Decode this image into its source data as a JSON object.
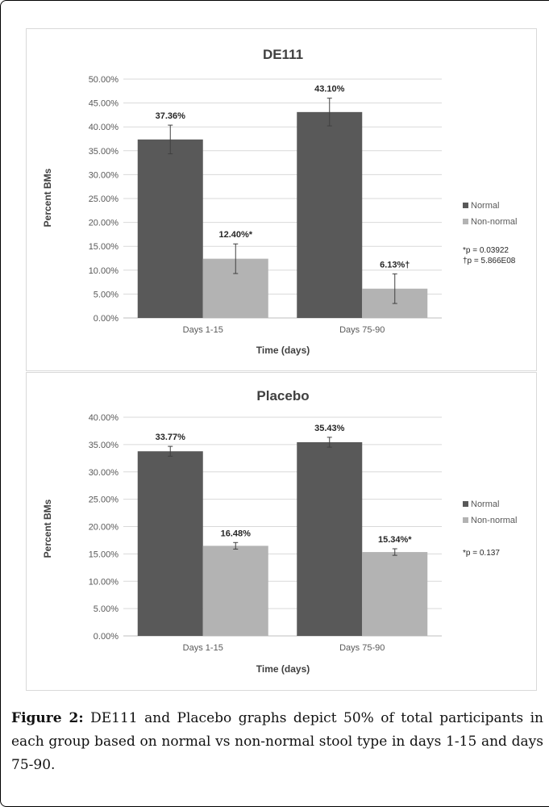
{
  "chart_data": [
    {
      "type": "bar",
      "title": "DE111",
      "xlabel": "Time (days)",
      "ylabel": "Percent BMs",
      "categories": [
        "Days 1-15",
        "Days 75-90"
      ],
      "series": [
        {
          "name": "Normal",
          "color": "#595959",
          "values": [
            37.36,
            43.1
          ],
          "errors": [
            3.0,
            2.9
          ],
          "labels": [
            "37.36%",
            "43.10%"
          ]
        },
        {
          "name": "Non-normal",
          "color": "#b3b3b3",
          "values": [
            12.4,
            6.13
          ],
          "errors": [
            3.1,
            3.1
          ],
          "labels": [
            "12.40%*",
            "6.13%†"
          ]
        }
      ],
      "ylim": [
        0,
        50
      ],
      "ystep": 5,
      "tick_labels": [
        "0.00%",
        "5.00%",
        "10.00%",
        "15.00%",
        "20.00%",
        "25.00%",
        "30.00%",
        "35.00%",
        "40.00%",
        "45.00%",
        "50.00%"
      ],
      "grid": true,
      "legend_position": "right",
      "notes": [
        "*p = 0.03922",
        "†p = 5.866E08"
      ]
    },
    {
      "type": "bar",
      "title": "Placebo",
      "xlabel": "Time (days)",
      "ylabel": "Percent BMs",
      "categories": [
        "Days 1-15",
        "Days 75-90"
      ],
      "series": [
        {
          "name": "Normal",
          "color": "#595959",
          "values": [
            33.77,
            35.43
          ],
          "errors": [
            0.9,
            0.9
          ],
          "labels": [
            "33.77%",
            "35.43%"
          ]
        },
        {
          "name": "Non-normal",
          "color": "#b3b3b3",
          "values": [
            16.48,
            15.34
          ],
          "errors": [
            0.6,
            0.6
          ],
          "labels": [
            "16.48%",
            "15.34%*"
          ]
        }
      ],
      "ylim": [
        0,
        40
      ],
      "ystep": 5,
      "tick_labels": [
        "0.00%",
        "5.00%",
        "10.00%",
        "15.00%",
        "20.00%",
        "25.00%",
        "30.00%",
        "35.00%",
        "40.00%"
      ],
      "grid": true,
      "legend_position": "right",
      "notes": [
        "*p = 0.137"
      ]
    }
  ],
  "caption": {
    "label": "Figure 2:",
    "text": " DE111 and Placebo graphs depict 50% of total participants in each group based on normal vs non-normal stool type in days 1-15 and days 75-90."
  }
}
